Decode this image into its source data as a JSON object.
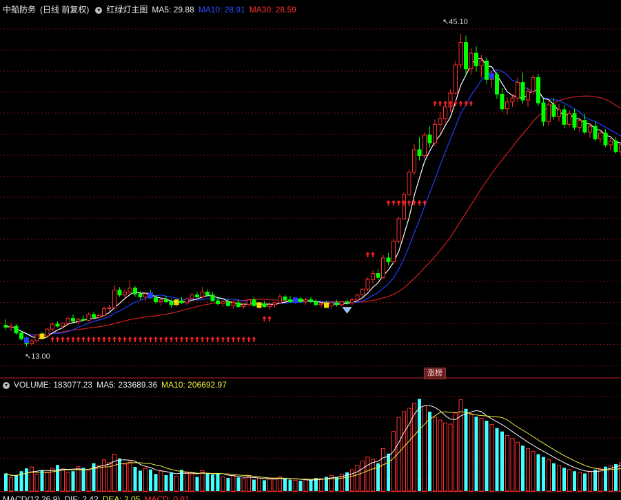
{
  "header": {
    "stock_name": "中船防务",
    "period": "(日线 前复权)",
    "indicator_name": "红绿灯主图",
    "ma5": "MA5: 29.88",
    "ma10": "MA10: 28.91",
    "ma30": "MA30: 28.59"
  },
  "volume_header": {
    "title": "VOLUME: 183077.23",
    "ma5": "MA5: 233689.36",
    "ma10": "MA10: 206692.97"
  },
  "macd_header": {
    "title": "MACD(12,26,9)",
    "dif": "DIF: 2.42",
    "dea": "DEA: 2.05",
    "macd": "MACD: 0.81"
  },
  "annotations": {
    "high_label": "45.10",
    "low_label": "13.00",
    "limit_up_tag": "涨榜"
  },
  "colors": {
    "up": "#ff3030",
    "down": "#00ff00",
    "ma5": "#ffffff",
    "ma10": "#2040ff",
    "ma30": "#d02020",
    "volume_cyan": "#40ffff",
    "grid": "#7a1010"
  },
  "chart_data": {
    "type": "candlestick",
    "price_range": [
      10,
      47
    ],
    "high_value": 45.1,
    "low_value": 13.0,
    "ohlc": [
      [
        15.2,
        15.8,
        14.7,
        15.0
      ],
      [
        15.0,
        15.4,
        14.6,
        15.1
      ],
      [
        15.1,
        15.3,
        14.2,
        14.4
      ],
      [
        14.4,
        14.6,
        13.6,
        13.8
      ],
      [
        13.8,
        14.0,
        13.0,
        13.3
      ],
      [
        13.3,
        13.8,
        13.1,
        13.6
      ],
      [
        13.6,
        14.3,
        13.4,
        14.2
      ],
      [
        14.2,
        14.5,
        13.9,
        14.1
      ],
      [
        14.1,
        14.9,
        14.0,
        14.8
      ],
      [
        14.8,
        15.5,
        14.6,
        15.3
      ],
      [
        15.3,
        15.6,
        15.0,
        15.1
      ],
      [
        15.1,
        15.5,
        14.9,
        15.4
      ],
      [
        15.4,
        16.1,
        15.2,
        15.9
      ],
      [
        15.9,
        16.3,
        15.5,
        15.6
      ],
      [
        15.6,
        15.9,
        15.3,
        15.8
      ],
      [
        15.8,
        16.2,
        15.6,
        15.7
      ],
      [
        15.7,
        16.5,
        15.6,
        16.3
      ],
      [
        16.3,
        16.6,
        15.9,
        16.0
      ],
      [
        16.0,
        16.4,
        15.8,
        16.2
      ],
      [
        16.2,
        17.1,
        16.1,
        16.9
      ],
      [
        16.9,
        17.3,
        16.6,
        17.0
      ],
      [
        17.0,
        19.3,
        16.9,
        18.8
      ],
      [
        18.8,
        19.1,
        18.1,
        18.3
      ],
      [
        18.3,
        18.9,
        17.9,
        18.6
      ],
      [
        18.6,
        19.8,
        18.4,
        19.0
      ],
      [
        19.0,
        19.2,
        18.1,
        18.4
      ],
      [
        18.4,
        18.7,
        17.8,
        18.1
      ],
      [
        18.1,
        18.6,
        17.7,
        18.4
      ],
      [
        18.4,
        18.8,
        17.9,
        18.0
      ],
      [
        18.0,
        18.3,
        17.4,
        17.6
      ],
      [
        17.6,
        17.9,
        17.2,
        17.8
      ],
      [
        17.8,
        18.2,
        17.5,
        17.6
      ],
      [
        17.6,
        17.9,
        17.0,
        17.3
      ],
      [
        17.3,
        17.8,
        17.1,
        17.7
      ],
      [
        17.7,
        18.1,
        17.4,
        17.5
      ],
      [
        17.5,
        18.0,
        17.3,
        17.9
      ],
      [
        17.9,
        18.5,
        17.7,
        18.3
      ],
      [
        18.3,
        18.6,
        18.0,
        18.1
      ],
      [
        18.1,
        19.1,
        17.9,
        18.6
      ],
      [
        18.6,
        18.9,
        18.1,
        18.3
      ],
      [
        18.3,
        18.6,
        17.6,
        17.7
      ],
      [
        17.7,
        18.0,
        17.2,
        17.4
      ],
      [
        17.4,
        17.8,
        17.1,
        17.6
      ],
      [
        17.6,
        17.9,
        17.1,
        17.2
      ],
      [
        17.2,
        17.6,
        16.9,
        17.5
      ],
      [
        17.5,
        17.8,
        17.0,
        17.1
      ],
      [
        17.1,
        17.5,
        16.9,
        17.3
      ],
      [
        17.3,
        17.9,
        17.2,
        17.8
      ],
      [
        17.8,
        18.1,
        17.1,
        17.2
      ],
      [
        17.2,
        17.6,
        16.9,
        17.4
      ],
      [
        17.4,
        17.7,
        17.0,
        17.1
      ],
      [
        17.1,
        17.5,
        16.8,
        17.3
      ],
      [
        17.3,
        17.6,
        17.0,
        17.5
      ],
      [
        17.5,
        18.4,
        17.4,
        18.1
      ],
      [
        18.1,
        18.3,
        17.6,
        17.8
      ],
      [
        17.8,
        18.2,
        17.5,
        17.6
      ],
      [
        17.6,
        18.0,
        17.4,
        17.9
      ],
      [
        17.9,
        18.1,
        17.5,
        17.6
      ],
      [
        17.6,
        18.0,
        17.3,
        17.8
      ],
      [
        17.8,
        18.1,
        17.5,
        17.6
      ],
      [
        17.6,
        17.9,
        17.2,
        17.3
      ],
      [
        17.3,
        17.6,
        17.0,
        17.4
      ],
      [
        17.4,
        17.7,
        17.1,
        17.2
      ],
      [
        17.2,
        17.6,
        16.9,
        17.5
      ],
      [
        17.5,
        17.8,
        17.1,
        17.3
      ],
      [
        17.3,
        17.7,
        17.1,
        17.6
      ],
      [
        17.6,
        17.9,
        17.3,
        17.5
      ],
      [
        17.5,
        18.0,
        17.3,
        17.8
      ],
      [
        17.8,
        18.4,
        17.7,
        18.3
      ],
      [
        18.3,
        19.0,
        18.1,
        18.9
      ],
      [
        18.9,
        20.1,
        18.7,
        19.9
      ],
      [
        19.9,
        20.8,
        19.5,
        20.5
      ],
      [
        20.5,
        21.0,
        19.8,
        20.1
      ],
      [
        20.1,
        22.4,
        20.0,
        22.1
      ],
      [
        22.1,
        22.6,
        21.3,
        21.7
      ],
      [
        21.7,
        24.1,
        21.6,
        23.8
      ],
      [
        23.8,
        26.3,
        23.6,
        26.1
      ],
      [
        26.1,
        28.8,
        26.0,
        28.6
      ],
      [
        28.6,
        31.2,
        28.4,
        30.9
      ],
      [
        30.9,
        33.8,
        30.6,
        33.2
      ],
      [
        33.2,
        34.5,
        32.1,
        32.6
      ],
      [
        32.6,
        35.0,
        32.3,
        34.7
      ],
      [
        34.7,
        35.6,
        33.4,
        33.9
      ],
      [
        33.9,
        36.3,
        33.6,
        35.8
      ],
      [
        35.8,
        37.1,
        35.0,
        36.4
      ],
      [
        36.4,
        38.2,
        35.9,
        37.6
      ],
      [
        37.6,
        39.4,
        37.1,
        39.0
      ],
      [
        39.0,
        42.3,
        38.8,
        41.9
      ],
      [
        41.9,
        45.1,
        41.5,
        44.2
      ],
      [
        44.2,
        44.9,
        40.8,
        41.5
      ],
      [
        41.5,
        43.6,
        40.9,
        43.1
      ],
      [
        43.1,
        43.8,
        41.2,
        41.8
      ],
      [
        41.8,
        42.9,
        40.6,
        42.3
      ],
      [
        42.3,
        42.7,
        39.9,
        40.4
      ],
      [
        40.4,
        41.3,
        39.6,
        40.9
      ],
      [
        40.9,
        41.2,
        38.4,
        38.9
      ],
      [
        38.9,
        39.5,
        37.1,
        37.4
      ],
      [
        37.4,
        38.6,
        36.8,
        38.1
      ],
      [
        38.1,
        38.9,
        37.6,
        38.5
      ],
      [
        38.5,
        40.6,
        38.1,
        40.1
      ],
      [
        40.1,
        41.1,
        37.9,
        38.3
      ],
      [
        38.3,
        39.6,
        37.6,
        39.2
      ],
      [
        39.2,
        40.9,
        38.8,
        40.6
      ],
      [
        40.6,
        41.0,
        37.7,
        38.0
      ],
      [
        38.0,
        38.4,
        35.6,
        36.1
      ],
      [
        36.1,
        38.2,
        35.7,
        37.8
      ],
      [
        37.8,
        38.5,
        36.3,
        36.6
      ],
      [
        36.6,
        37.9,
        36.1,
        37.3
      ],
      [
        37.3,
        37.8,
        35.4,
        35.8
      ],
      [
        35.8,
        37.2,
        35.5,
        36.9
      ],
      [
        36.9,
        37.4,
        35.2,
        35.5
      ],
      [
        35.5,
        36.5,
        35.0,
        36.2
      ],
      [
        36.2,
        36.9,
        34.8,
        35.0
      ],
      [
        35.0,
        35.9,
        34.4,
        35.6
      ],
      [
        35.6,
        36.1,
        34.1,
        34.3
      ],
      [
        34.3,
        35.2,
        33.9,
        34.9
      ],
      [
        34.9,
        35.3,
        33.5,
        33.7
      ],
      [
        33.7,
        34.4,
        33.1,
        34.1
      ],
      [
        34.1,
        34.5,
        32.8,
        33.0
      ],
      [
        33.0,
        34.0,
        32.6,
        33.7
      ]
    ],
    "volume": [
      62,
      48,
      55,
      70,
      80,
      85,
      60,
      72,
      65,
      80,
      92,
      78,
      66,
      70,
      86,
      82,
      75,
      98,
      90,
      110,
      100,
      130,
      115,
      95,
      102,
      85,
      72,
      80,
      76,
      60,
      70,
      56,
      64,
      52,
      75,
      66,
      60,
      50,
      72,
      64,
      58,
      62,
      50,
      46,
      55,
      48,
      44,
      52,
      40,
      46,
      38,
      42,
      45,
      50,
      44,
      40,
      38,
      36,
      40,
      38,
      46,
      44,
      50,
      55,
      48,
      60,
      66,
      75,
      90,
      106,
      120,
      112,
      98,
      150,
      132,
      210,
      260,
      280,
      292,
      310,
      325,
      300,
      280,
      260,
      250,
      240,
      236,
      275,
      322,
      290,
      270,
      262,
      256,
      248,
      235,
      222,
      210,
      196,
      185,
      172,
      160,
      150,
      140,
      130,
      120,
      110,
      98,
      90,
      82,
      76,
      70,
      66,
      62,
      70,
      75,
      80,
      86,
      90,
      95,
      100
    ]
  }
}
